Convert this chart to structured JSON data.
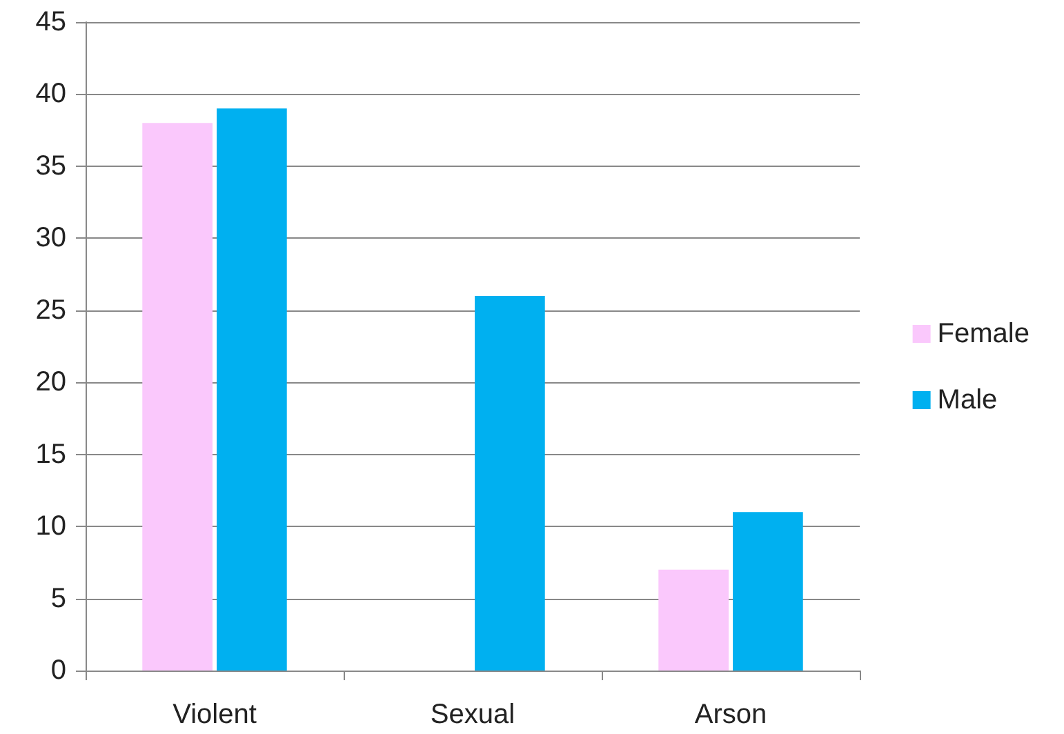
{
  "chart_data": {
    "type": "bar",
    "categories": [
      "Violent",
      "Sexual",
      "Arson"
    ],
    "series": [
      {
        "name": "Female",
        "color": "#fac8fc",
        "values": [
          38,
          0,
          7
        ]
      },
      {
        "name": "Male",
        "color": "#00b0f0",
        "values": [
          39,
          26,
          11
        ]
      }
    ],
    "ylim": [
      0,
      45
    ],
    "yticks": [
      0,
      5,
      10,
      15,
      20,
      25,
      30,
      35,
      40,
      45
    ],
    "grid": "y",
    "legend": "right"
  }
}
